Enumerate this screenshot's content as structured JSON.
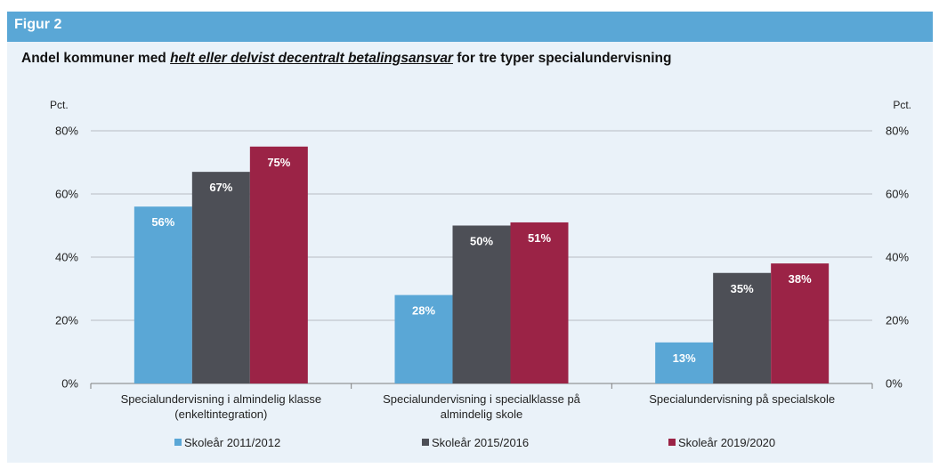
{
  "header": {
    "label": "Figur 2"
  },
  "title": {
    "prefix": "Andel kommuner med ",
    "emphasis": "helt eller delvist decentralt betalingsansvar",
    "suffix": " for tre typer specialundervisning"
  },
  "chart_data": {
    "type": "bar",
    "title": "Andel kommuner med helt eller delvist decentralt betalingsansvar for tre typer specialundervisning",
    "ylabel_left": "Pct.",
    "ylabel_right": "Pct.",
    "ylim": [
      0,
      80
    ],
    "yticks": [
      "0%",
      "20%",
      "40%",
      "60%",
      "80%"
    ],
    "ytick_values": [
      0,
      20,
      40,
      60,
      80
    ],
    "grid": true,
    "legend_position": "bottom",
    "categories": [
      [
        "Specialundervisning i almindelig klasse",
        "(enkeltintegration)"
      ],
      [
        "Specialundervisning i specialklasse på",
        "almindelig skole"
      ],
      [
        "Specialundervisning på specialskole"
      ]
    ],
    "series": [
      {
        "name": "Skoleår 2011/2012",
        "color": "#5aa7d6",
        "values": [
          56,
          28,
          13
        ],
        "labels": [
          "56%",
          "28%",
          "13%"
        ]
      },
      {
        "name": "Skoleår 2015/2016",
        "color": "#4d4f56",
        "values": [
          67,
          50,
          35
        ],
        "labels": [
          "67%",
          "50%",
          "35%"
        ]
      },
      {
        "name": "Skoleår 2019/2020",
        "color": "#9b2346",
        "values": [
          75,
          51,
          38
        ],
        "labels": [
          "75%",
          "51%",
          "38%"
        ]
      }
    ]
  }
}
